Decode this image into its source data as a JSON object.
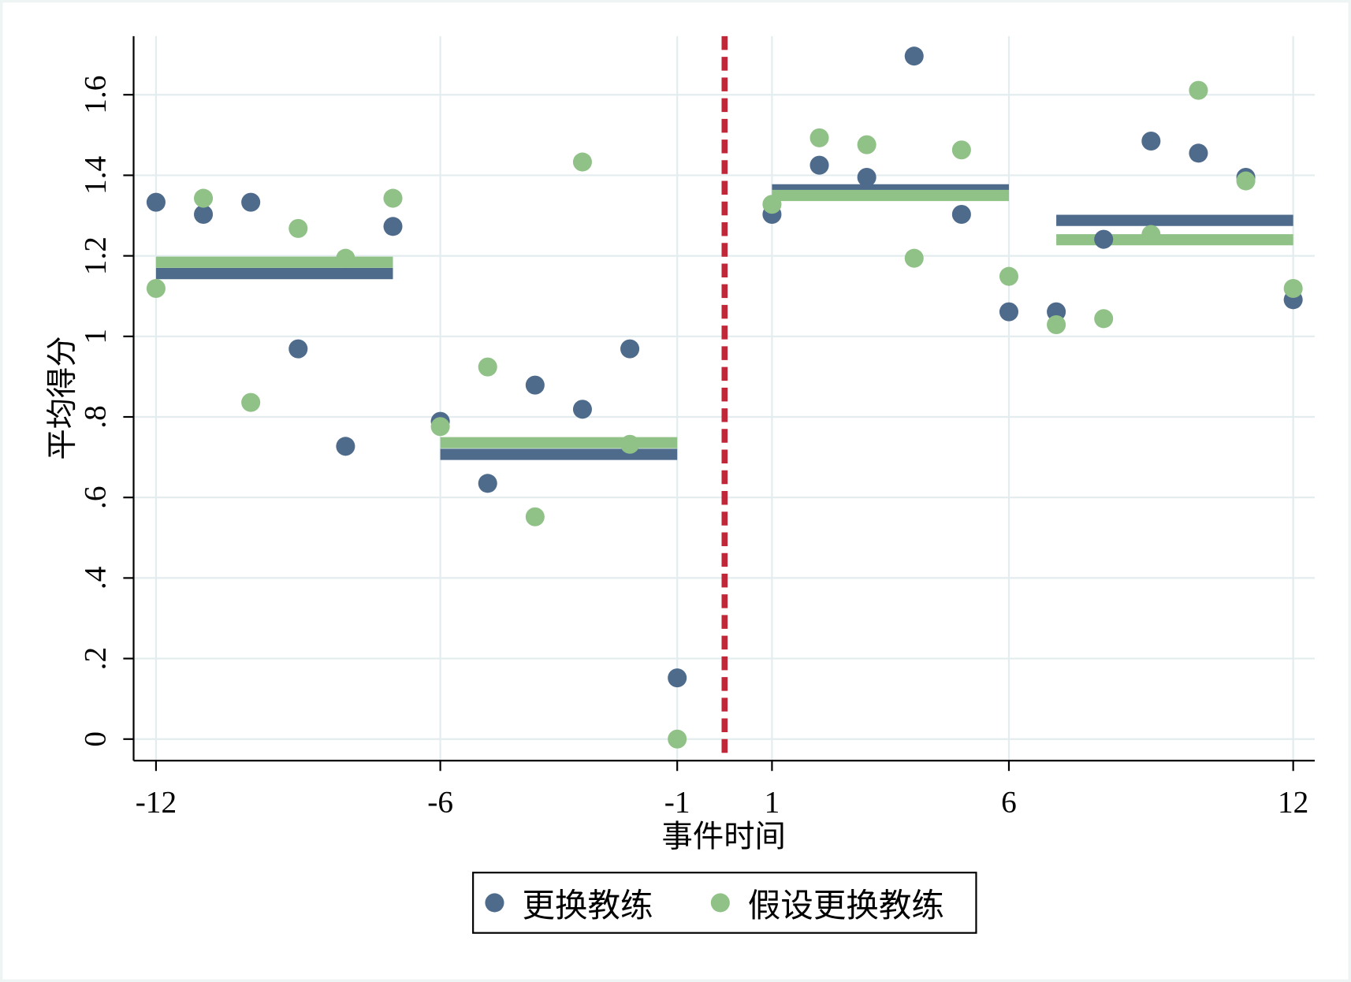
{
  "chart_data": {
    "type": "scatter",
    "title": "",
    "xlabel": "事件时间",
    "ylabel": "平均得分",
    "xlim": [
      -12.45,
      12.45
    ],
    "ylim": [
      -0.055,
      1.8
    ],
    "x_ticks": [
      -12,
      -6,
      -1,
      1,
      6,
      12
    ],
    "x_tick_labels": [
      "-12",
      "-6",
      "-1",
      "1",
      "6",
      "12"
    ],
    "y_ticks": [
      0,
      0.2,
      0.4,
      0.6,
      0.8,
      1.0,
      1.2,
      1.4,
      1.6
    ],
    "y_tick_labels": [
      "0",
      ".2",
      ".4",
      ".6",
      ".8",
      "1",
      "1.2",
      "1.4",
      "1.6"
    ],
    "grid": true,
    "event_line": {
      "x": 0,
      "style": "dashed",
      "color": "#c0283a"
    },
    "x": [
      -12,
      -11,
      -10,
      -9,
      -8,
      -7,
      -6,
      -5,
      -4,
      -3,
      -2,
      -1,
      1,
      2,
      3,
      4,
      5,
      6,
      7,
      8,
      9,
      10,
      11,
      12
    ],
    "series": [
      {
        "name": "更换教练",
        "color": "#4e6b8c",
        "values": [
          1.333,
          1.303,
          1.333,
          0.969,
          0.727,
          1.273,
          0.789,
          0.635,
          0.879,
          0.819,
          0.969,
          0.152,
          1.303,
          1.425,
          1.395,
          1.696,
          1.303,
          1.061,
          1.061,
          1.241,
          1.485,
          1.455,
          1.395,
          1.091
        ]
      },
      {
        "name": "假设更换教练",
        "color": "#90c187",
        "values": [
          1.119,
          1.343,
          0.836,
          1.268,
          1.194,
          1.343,
          0.776,
          0.924,
          0.552,
          1.433,
          0.732,
          0.0,
          1.328,
          1.493,
          1.476,
          1.194,
          1.463,
          1.149,
          1.029,
          1.044,
          1.253,
          1.611,
          1.386,
          1.119
        ]
      }
    ],
    "period_means": {
      "periods": [
        [
          -12,
          -7
        ],
        [
          -6,
          -1
        ],
        [
          1,
          6
        ],
        [
          7,
          12
        ]
      ],
      "更换教练": [
        1.156,
        0.707,
        1.364,
        1.288
      ],
      "假设更换教练": [
        1.184,
        0.736,
        1.35,
        1.24
      ]
    },
    "legend": {
      "placement": "bottom",
      "labels": [
        "更换教练",
        "假设更换教练"
      ]
    }
  }
}
